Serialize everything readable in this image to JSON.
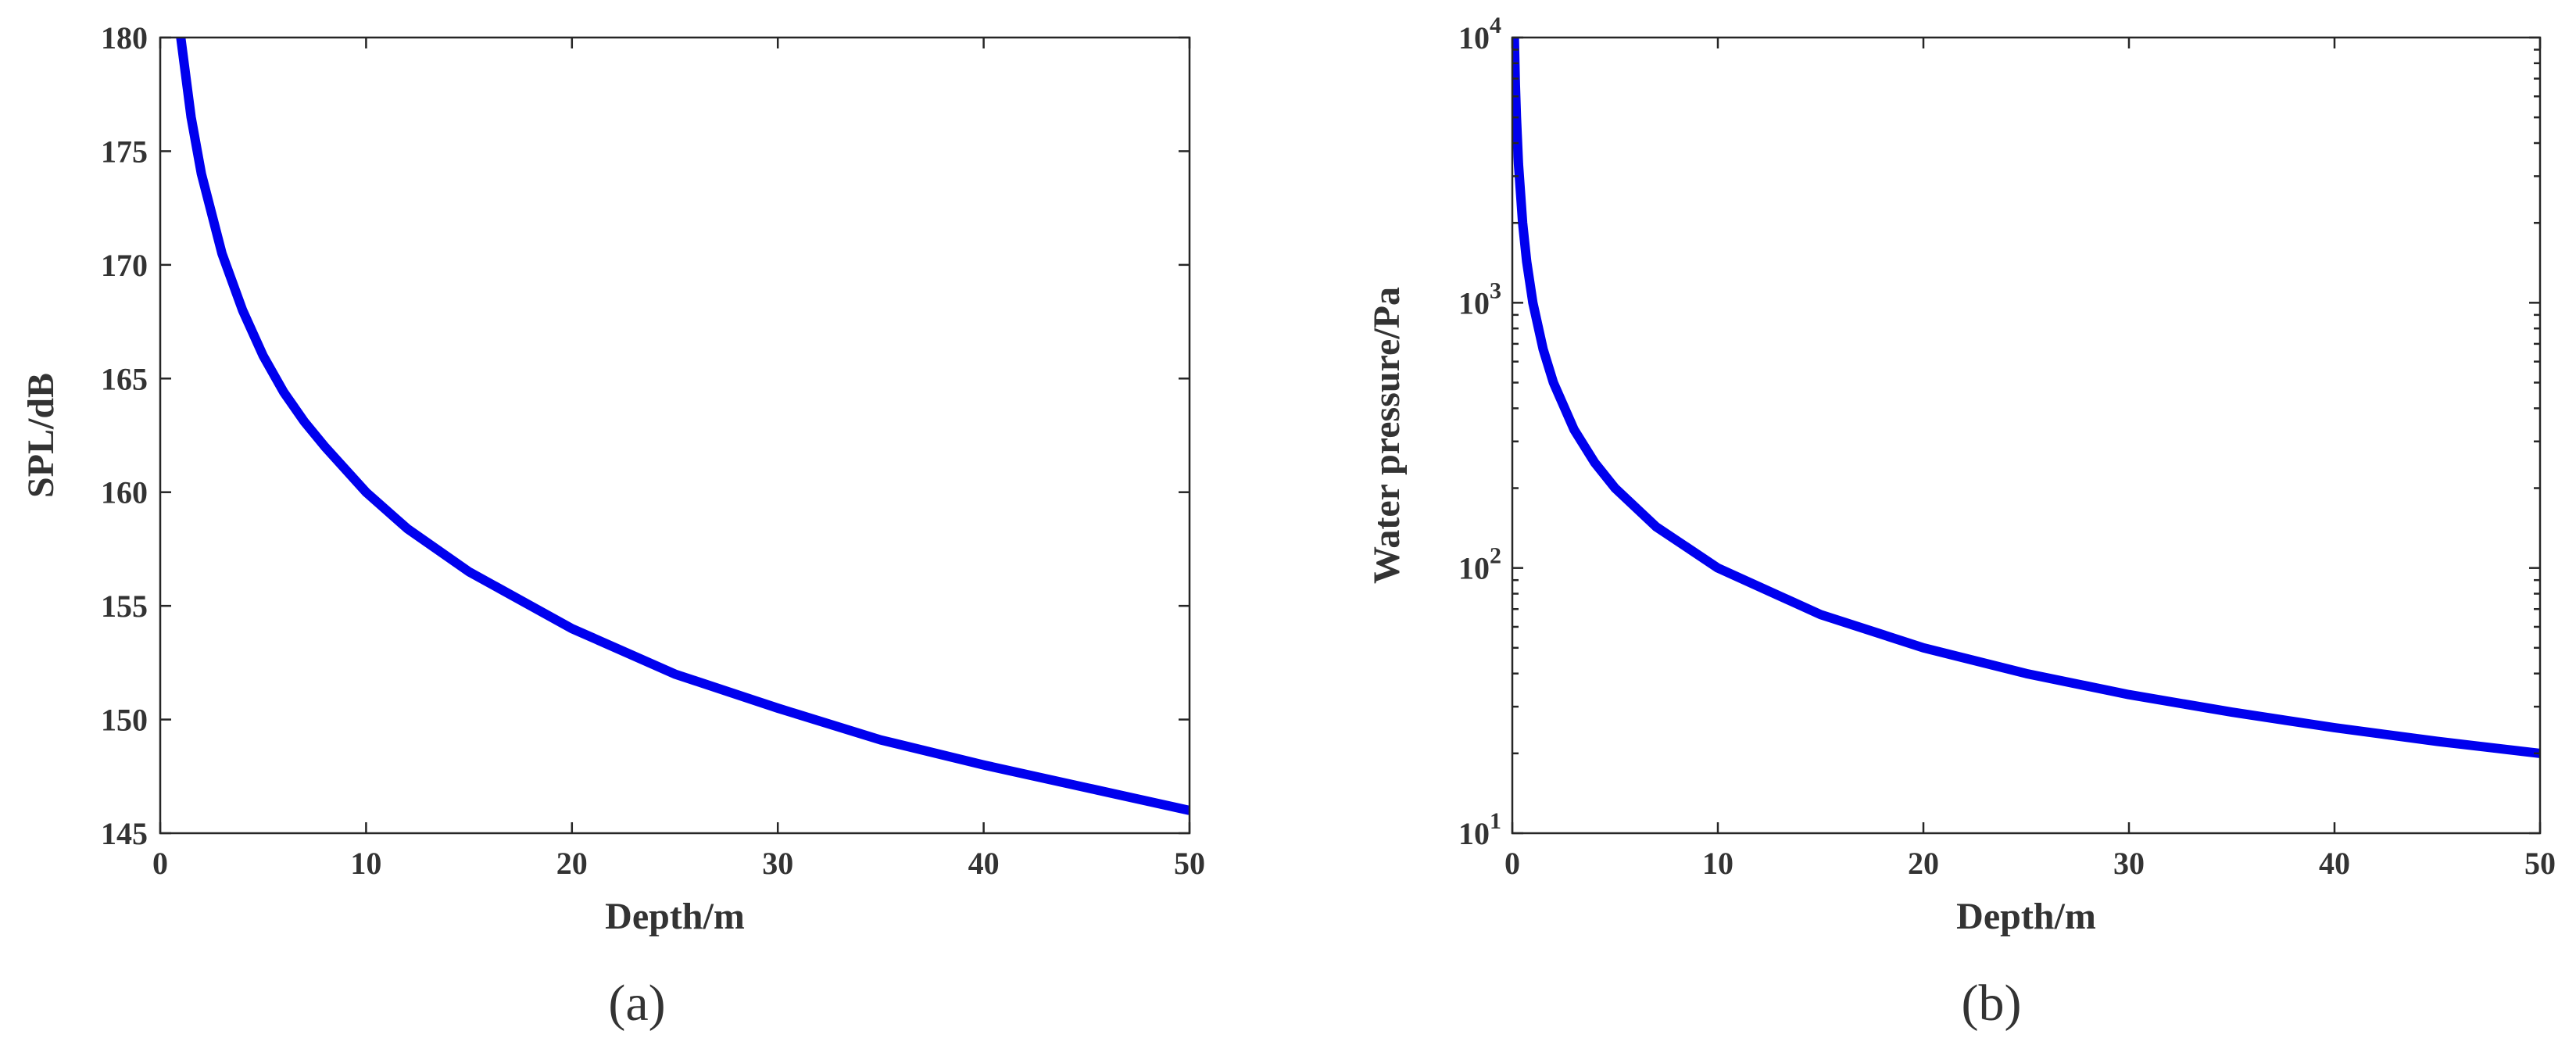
{
  "chart_data": [
    {
      "type": "line",
      "panel_label": "(a)",
      "xlabel": "Depth/m",
      "ylabel": "SPL/dB",
      "xlim": [
        0,
        50
      ],
      "ylim": [
        145,
        180
      ],
      "xticks": [
        0,
        10,
        20,
        30,
        40,
        50
      ],
      "yticks": [
        145,
        150,
        155,
        160,
        165,
        170,
        175,
        180
      ],
      "xtick_labels": [
        "0",
        "10",
        "20",
        "30",
        "40",
        "50"
      ],
      "ytick_labels": [
        "145",
        "150",
        "155",
        "160",
        "165",
        "170",
        "175",
        "180"
      ],
      "yscale": "linear",
      "grid": false,
      "series": [
        {
          "color": "#0000ee",
          "x": [
            1,
            1.5,
            2,
            3,
            4,
            5,
            6,
            7,
            8,
            10,
            12,
            15,
            20,
            25,
            30,
            35,
            40,
            45,
            50
          ],
          "y": [
            180,
            176.5,
            174,
            170.5,
            168,
            166,
            164.4,
            163.1,
            162,
            160,
            158.4,
            156.5,
            154,
            152,
            150.5,
            149.1,
            148,
            147,
            146
          ]
        }
      ]
    },
    {
      "type": "line",
      "panel_label": "(b)",
      "xlabel": "Depth/m",
      "ylabel": "Water pressure/Pa",
      "xlim": [
        0,
        50
      ],
      "ylim": [
        10,
        10000
      ],
      "xticks": [
        0,
        10,
        20,
        30,
        40,
        50
      ],
      "yticks": [
        10,
        100,
        1000,
        10000
      ],
      "xtick_labels": [
        "0",
        "10",
        "20",
        "30",
        "40",
        "50"
      ],
      "ytick_labels": [
        {
          "base": "10",
          "exp": "1"
        },
        {
          "base": "10",
          "exp": "2"
        },
        {
          "base": "10",
          "exp": "3"
        },
        {
          "base": "10",
          "exp": "4"
        }
      ],
      "yscale": "log",
      "grid": false,
      "series": [
        {
          "color": "#0000ee",
          "x": [
            0.1,
            0.15,
            0.2,
            0.3,
            0.5,
            0.7,
            1,
            1.5,
            2,
            3,
            4,
            5,
            7,
            10,
            15,
            20,
            25,
            30,
            35,
            40,
            45,
            50
          ],
          "y": [
            10000,
            6667,
            5000,
            3333,
            2000,
            1429,
            1000,
            667,
            500,
            333,
            250,
            200,
            143,
            100,
            66.7,
            50,
            40,
            33.3,
            28.6,
            25,
            22.2,
            20
          ]
        }
      ]
    }
  ]
}
